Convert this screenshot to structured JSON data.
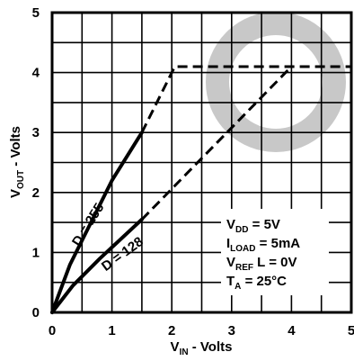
{
  "chart_data": {
    "type": "line",
    "xlabel": {
      "main": "V",
      "sub": "IN",
      "rest": " - Volts"
    },
    "ylabel": {
      "main": "V",
      "sub": "OUT",
      "rest": " - Volts"
    },
    "xlim": [
      0,
      5
    ],
    "ylim": [
      0,
      5
    ],
    "x_ticks": [
      "0",
      "1",
      "2",
      "3",
      "4",
      "5"
    ],
    "y_ticks": [
      "0",
      "1",
      "2",
      "3",
      "4",
      "5"
    ],
    "grid": true,
    "series": [
      {
        "name": "D = 255",
        "solid": [
          [
            0,
            0
          ],
          [
            0.3,
            0.8
          ],
          [
            0.6,
            1.4
          ],
          [
            1.0,
            2.2
          ],
          [
            1.5,
            3.0
          ]
        ],
        "dashed": [
          [
            1.5,
            3.0
          ],
          [
            2.05,
            4.1
          ],
          [
            5.0,
            4.1
          ]
        ]
      },
      {
        "name": "D = 128",
        "solid": [
          [
            0,
            0
          ],
          [
            0.35,
            0.45
          ],
          [
            0.8,
            0.9
          ],
          [
            1.5,
            1.55
          ]
        ],
        "dashed": [
          [
            1.5,
            1.55
          ],
          [
            4.0,
            4.1
          ]
        ]
      }
    ],
    "annotation_lines": [
      {
        "main": "V",
        "sub": "DD",
        "rest": " = 5V"
      },
      {
        "main": "I",
        "sub": "LOAD",
        "rest": " = 5mA"
      },
      {
        "main": "V",
        "sub": "REF",
        "rest": " L = 0V"
      },
      {
        "main": "T",
        "sub": "A",
        "rest": " = 25°C"
      }
    ],
    "colors": {
      "line": "#000000",
      "grid": "#000000",
      "watermark": "#c8c8c8"
    }
  }
}
